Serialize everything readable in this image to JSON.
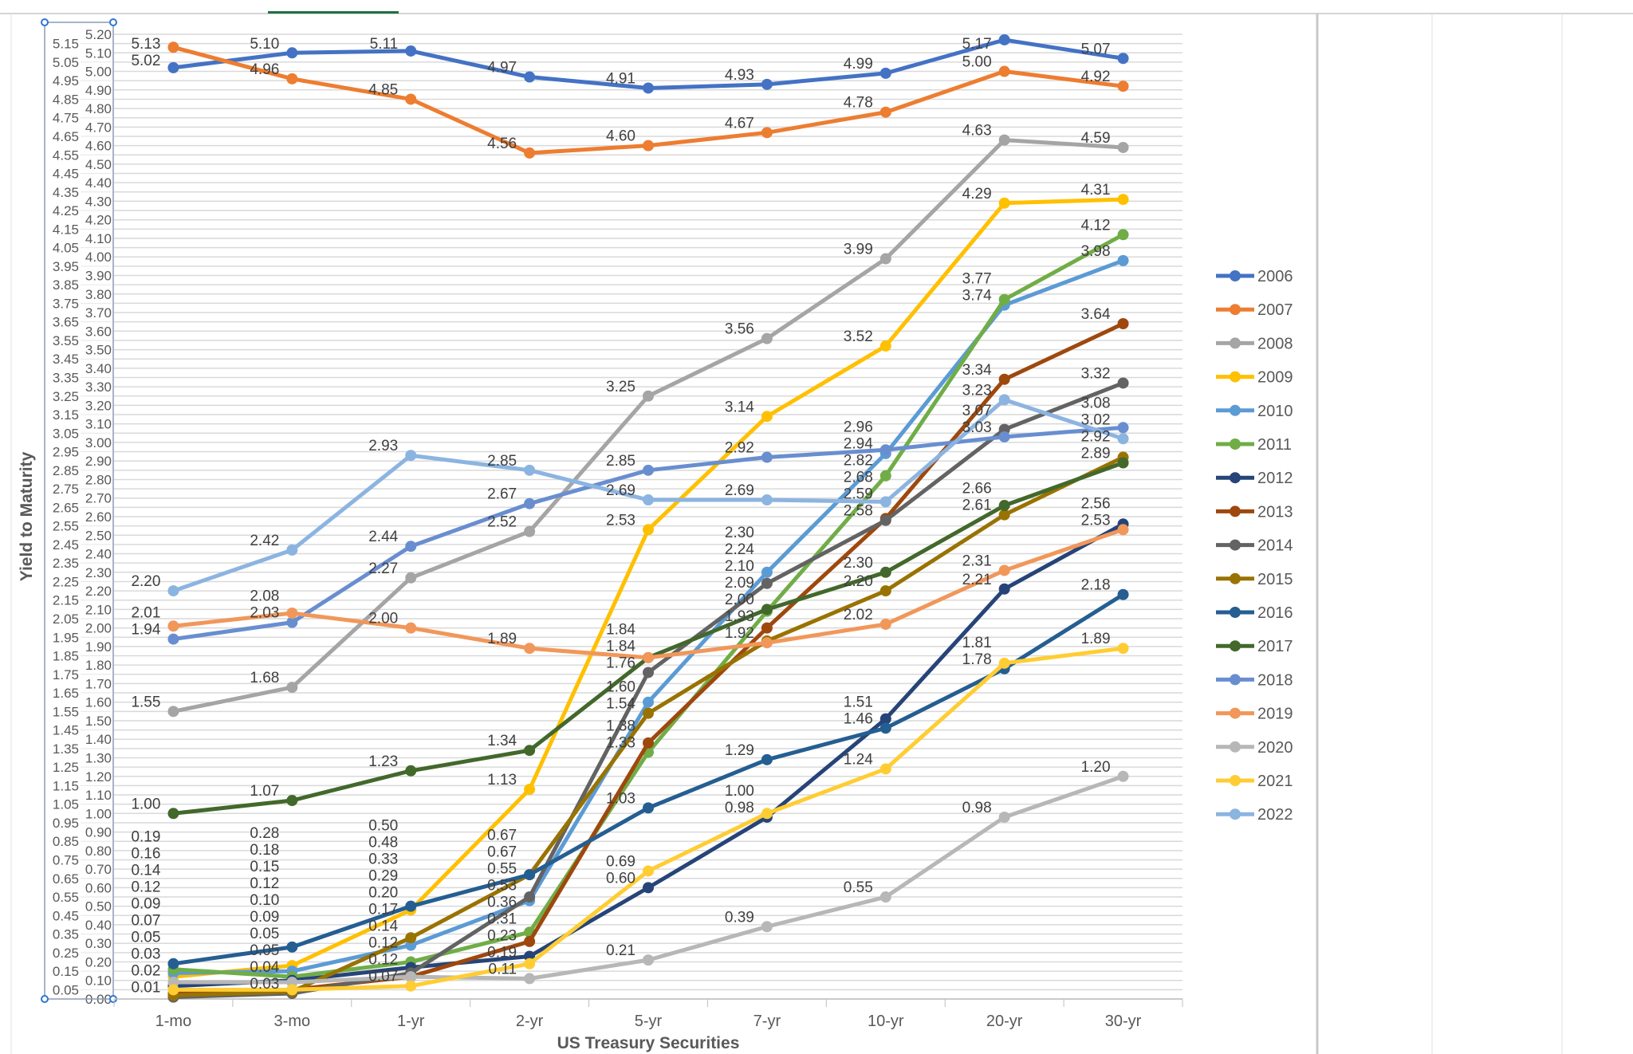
{
  "chart_data": {
    "type": "line",
    "title": "",
    "xlabel": "US Treasury Securities",
    "ylabel": "Yield to Maturity",
    "ylim": [
      0,
      5.2
    ],
    "ytick_step": 0.05,
    "grid": true,
    "legend_position": "right",
    "data_labels": true,
    "categories": [
      "1-mo",
      "3-mo",
      "1-yr",
      "2-yr",
      "5-yr",
      "7-yr",
      "10-yr",
      "20-yr",
      "30-yr"
    ],
    "series": [
      {
        "name": "2006",
        "color": "#4472C4",
        "values": [
          5.02,
          5.1,
          5.11,
          4.97,
          4.91,
          4.93,
          4.99,
          5.17,
          5.07
        ]
      },
      {
        "name": "2007",
        "color": "#ED7D31",
        "values": [
          5.13,
          4.96,
          4.85,
          4.56,
          4.6,
          4.67,
          4.78,
          5.0,
          4.92
        ]
      },
      {
        "name": "2008",
        "color": "#A5A5A5",
        "values": [
          1.55,
          1.68,
          2.27,
          2.52,
          3.25,
          3.56,
          3.99,
          4.63,
          4.59
        ]
      },
      {
        "name": "2009",
        "color": "#FFC000",
        "values": [
          0.12,
          0.18,
          0.48,
          1.13,
          2.53,
          3.14,
          3.52,
          4.29,
          4.31
        ]
      },
      {
        "name": "2010",
        "color": "#5B9BD5",
        "values": [
          0.14,
          0.15,
          0.29,
          0.53,
          1.6,
          2.3,
          2.94,
          3.74,
          3.98
        ]
      },
      {
        "name": "2011",
        "color": "#70AD47",
        "values": [
          0.16,
          0.12,
          0.2,
          0.36,
          1.33,
          2.09,
          2.82,
          3.77,
          4.12
        ]
      },
      {
        "name": "2012",
        "color": "#264478",
        "values": [
          0.07,
          0.1,
          0.17,
          0.23,
          0.6,
          0.98,
          1.51,
          2.21,
          2.56
        ]
      },
      {
        "name": "2013",
        "color": "#9E480E",
        "values": [
          0.03,
          0.05,
          0.12,
          0.31,
          1.38,
          2.0,
          2.59,
          3.34,
          3.64
        ]
      },
      {
        "name": "2014",
        "color": "#636363",
        "values": [
          0.01,
          0.03,
          0.14,
          0.55,
          1.76,
          2.24,
          2.58,
          3.07,
          3.32
        ]
      },
      {
        "name": "2015",
        "color": "#997300",
        "values": [
          0.02,
          0.04,
          0.33,
          0.67,
          1.54,
          1.93,
          2.2,
          2.61,
          2.92
        ]
      },
      {
        "name": "2016",
        "color": "#255E91",
        "values": [
          0.19,
          0.28,
          0.5,
          0.67,
          1.03,
          1.29,
          1.46,
          1.78,
          2.18
        ]
      },
      {
        "name": "2017",
        "color": "#43682B",
        "values": [
          1.0,
          1.07,
          1.23,
          1.34,
          1.84,
          2.1,
          2.3,
          2.66,
          2.89
        ]
      },
      {
        "name": "2018",
        "color": "#698ED0",
        "values": [
          1.94,
          2.03,
          2.44,
          2.67,
          2.85,
          2.92,
          2.96,
          3.03,
          3.08
        ]
      },
      {
        "name": "2019",
        "color": "#F1975A",
        "values": [
          2.01,
          2.08,
          2.0,
          1.89,
          1.84,
          1.92,
          2.02,
          2.31,
          2.53
        ]
      },
      {
        "name": "2020",
        "color": "#B7B7B7",
        "values": [
          0.09,
          0.09,
          0.12,
          0.11,
          0.21,
          0.39,
          0.55,
          0.98,
          1.2
        ]
      },
      {
        "name": "2021",
        "color": "#FFCD33",
        "values": [
          0.05,
          0.05,
          0.07,
          0.19,
          0.69,
          1.0,
          1.24,
          1.81,
          1.89
        ]
      },
      {
        "name": "2022",
        "color": "#8CB4E1",
        "values": [
          2.2,
          2.42,
          2.93,
          2.85,
          2.69,
          2.69,
          2.68,
          3.23,
          3.02
        ]
      }
    ]
  }
}
